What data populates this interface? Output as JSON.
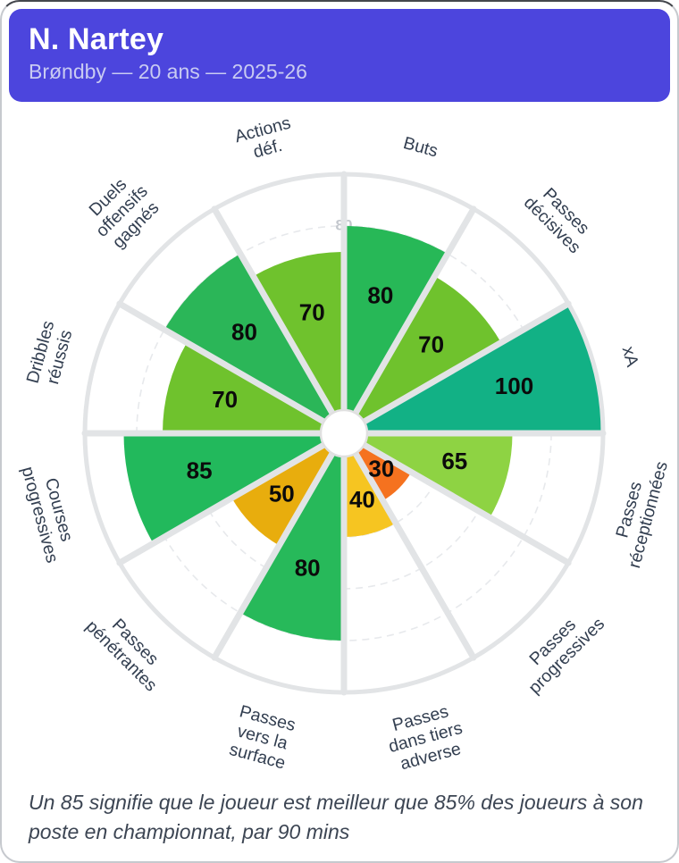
{
  "header": {
    "title": "N. Nartey",
    "subtitle": "Brøndby — 20 ans — 2025-26",
    "background": "#4c45dd",
    "subtitle_color": "#c9cbf2"
  },
  "footer": {
    "note": "Un 85 signifie que le joueur est meilleur que 85% des joueurs à son poste en championnat, par 90 mins"
  },
  "chart_data": {
    "type": "bar",
    "variant": "polar-pizza",
    "title": "",
    "rlim": [
      0,
      100
    ],
    "grid_values": [
      20,
      40,
      60,
      80
    ],
    "visible_grid_tick_label": "80",
    "sector_width_deg": 30,
    "start_from": "top-clockwise",
    "categories": [
      "Buts",
      "Passes décisives",
      "xA",
      "Passes réceptionnées",
      "Passes progressives",
      "Passes dans tiers adverse",
      "Passes vers la surface",
      "Passes pénétrantes",
      "Courses progressives",
      "Dribbles réussis",
      "Duels offensifs gagnés",
      "Actions déf."
    ],
    "label_lines": [
      [
        "Buts"
      ],
      [
        "Passes",
        "décisives"
      ],
      [
        "xA"
      ],
      [
        "Passes",
        "réceptionnées"
      ],
      [
        "Passes",
        "progressives"
      ],
      [
        "Passes",
        "dans tiers",
        "adverse"
      ],
      [
        "Passes",
        "vers la",
        "surface"
      ],
      [
        "Passes",
        "pénétrantes"
      ],
      [
        "Courses",
        "progressives"
      ],
      [
        "Dribbles",
        "réussis"
      ],
      [
        "Duels",
        "offensifs",
        "gagnés"
      ],
      [
        "Actions",
        "déf."
      ]
    ],
    "values": [
      80,
      70,
      100,
      65,
      30,
      40,
      80,
      50,
      85,
      70,
      80,
      70
    ],
    "colors": [
      "#27b857",
      "#6fc22d",
      "#12b185",
      "#8ed343",
      "#f5721f",
      "#f6c521",
      "#27b95a",
      "#e8ad0d",
      "#22b95c",
      "#6fc22d",
      "#2bb658",
      "#6fc22d"
    ]
  },
  "chart_colors": {
    "value_label": "#0b0b0b",
    "category_label": "#323e50",
    "grid": "#e7e9ec",
    "spoke": "#e2e4e6",
    "tick_label": "#c3c7cd",
    "center_hole_stroke": "#e0e0e0"
  }
}
